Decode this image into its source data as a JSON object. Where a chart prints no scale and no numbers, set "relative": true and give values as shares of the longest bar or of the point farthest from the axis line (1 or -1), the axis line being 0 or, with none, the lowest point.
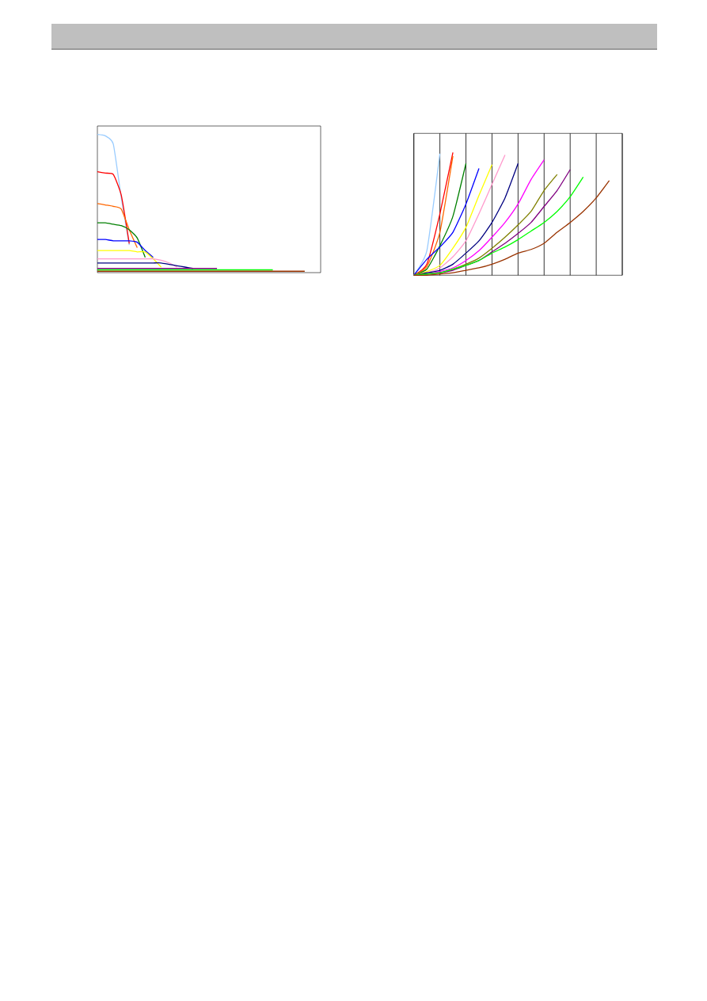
{
  "chart_data": [
    {
      "type": "line",
      "relative": true,
      "tick_labels": false,
      "categories": [
        null,
        null,
        null,
        null,
        null,
        null,
        null,
        null,
        null,
        null,
        null,
        null,
        null,
        null,
        null,
        null,
        null,
        null,
        null,
        null,
        null,
        null,
        null,
        null,
        null,
        null,
        null,
        null,
        null
      ],
      "series": [
        {
          "color": "#99ccff",
          "values": [
            1.0,
            0.99,
            0.93,
            0.54,
            0.2,
            null,
            null,
            null,
            null,
            null,
            null,
            null,
            null,
            null,
            null,
            null,
            null,
            null,
            null,
            null,
            null,
            null,
            null,
            null,
            null,
            null,
            null,
            null,
            null
          ]
        },
        {
          "color": "#ff0000",
          "values": [
            0.73,
            0.72,
            0.71,
            0.56,
            0.21,
            null,
            null,
            null,
            null,
            null,
            null,
            null,
            null,
            null,
            null,
            null,
            null,
            null,
            null,
            null,
            null,
            null,
            null,
            null,
            null,
            null,
            null,
            null,
            null
          ]
        },
        {
          "color": "#ff6600",
          "values": [
            0.5,
            0.49,
            0.48,
            0.46,
            0.31,
            0.18,
            null,
            null,
            null,
            null,
            null,
            null,
            null,
            null,
            null,
            null,
            null,
            null,
            null,
            null,
            null,
            null,
            null,
            null,
            null,
            null,
            null,
            null,
            null
          ]
        },
        {
          "color": "#008000",
          "values": [
            0.36,
            0.36,
            0.35,
            0.34,
            0.31,
            0.25,
            0.11,
            null,
            null,
            null,
            null,
            null,
            null,
            null,
            null,
            null,
            null,
            null,
            null,
            null,
            null,
            null,
            null,
            null,
            null,
            null,
            null,
            null,
            null
          ]
        },
        {
          "color": "#0000ff",
          "values": [
            0.24,
            0.24,
            0.23,
            0.23,
            0.23,
            0.22,
            0.16,
            0.11,
            null,
            null,
            null,
            null,
            null,
            null,
            null,
            null,
            null,
            null,
            null,
            null,
            null,
            null,
            null,
            null,
            null,
            null,
            null,
            null,
            null
          ]
        },
        {
          "color": "#ffff00",
          "values": [
            0.16,
            0.16,
            0.16,
            0.16,
            0.16,
            0.15,
            0.15,
            0.1,
            0.04,
            null,
            null,
            null,
            null,
            null,
            null,
            null,
            null,
            null,
            null,
            null,
            null,
            null,
            null,
            null,
            null,
            null,
            null,
            null,
            null
          ]
        },
        {
          "color": "#ff99cc",
          "values": [
            0.1,
            0.1,
            0.1,
            0.1,
            0.1,
            0.1,
            0.1,
            0.1,
            0.09,
            0.07,
            0.04,
            null,
            null,
            null,
            null,
            null,
            null,
            null,
            null,
            null,
            null,
            null,
            null,
            null,
            null,
            null,
            null,
            null,
            null
          ]
        },
        {
          "color": "#000080",
          "values": [
            0.07,
            0.07,
            0.07,
            0.07,
            0.07,
            0.07,
            0.07,
            0.07,
            0.07,
            0.06,
            0.05,
            0.04,
            0.03,
            null,
            null,
            null,
            null,
            null,
            null,
            null,
            null,
            null,
            null,
            null,
            null,
            null,
            null,
            null,
            null
          ]
        },
        {
          "color": "#800080",
          "values": [
            0.03,
            0.03,
            0.03,
            0.03,
            0.03,
            0.03,
            0.03,
            0.03,
            0.03,
            0.03,
            0.03,
            0.03,
            0.03,
            0.03,
            0.03,
            0.03,
            null,
            null,
            null,
            null,
            null,
            null,
            null,
            null,
            null,
            null,
            null,
            null,
            null
          ]
        },
        {
          "color": "#00ff00",
          "values": [
            0.02,
            0.02,
            0.02,
            0.02,
            0.02,
            0.02,
            0.02,
            0.02,
            0.02,
            0.02,
            0.02,
            0.02,
            0.02,
            0.02,
            0.02,
            0.02,
            0.02,
            0.02,
            0.02,
            0.02,
            0.02,
            0.02,
            0.02,
            null,
            null,
            null,
            null,
            null,
            null
          ]
        },
        {
          "color": "#993300",
          "values": [
            0.01,
            0.01,
            0.01,
            0.01,
            0.01,
            0.01,
            0.01,
            0.01,
            0.01,
            0.01,
            0.01,
            0.01,
            0.01,
            0.01,
            0.01,
            0.01,
            0.01,
            0.01,
            0.01,
            0.01,
            0.01,
            0.01,
            0.01,
            0.01,
            0.01,
            0.01,
            0.01,
            null,
            null
          ]
        }
      ]
    },
    {
      "type": "line",
      "relative": true,
      "tick_labels": false,
      "grid": "x",
      "categories": [
        null,
        null,
        null,
        null,
        null,
        null,
        null,
        null,
        null,
        null,
        null,
        null,
        null,
        null,
        null,
        null,
        null
      ],
      "series": [
        {
          "color": "#99ccff",
          "values": [
            0,
            0.2,
            0.99,
            null,
            null,
            null,
            null,
            null,
            null,
            null,
            null,
            null,
            null,
            null,
            null,
            null,
            null
          ]
        },
        {
          "color": "#ff0000",
          "values": [
            0,
            0.09,
            0.5,
            1.0,
            null,
            null,
            null,
            null,
            null,
            null,
            null,
            null,
            null,
            null,
            null,
            null,
            null
          ]
        },
        {
          "color": "#ff6600",
          "values": [
            0,
            0.07,
            0.35,
            0.97,
            null,
            null,
            null,
            null,
            null,
            null,
            null,
            null,
            null,
            null,
            null,
            null,
            null
          ]
        },
        {
          "color": "#008000",
          "values": [
            0,
            0.05,
            0.24,
            0.48,
            0.91,
            null,
            null,
            null,
            null,
            null,
            null,
            null,
            null,
            null,
            null,
            null,
            null
          ]
        },
        {
          "color": "#0000ff",
          "values": [
            0,
            0.13,
            0.23,
            0.35,
            0.58,
            0.87,
            null,
            null,
            null,
            null,
            null,
            null,
            null,
            null,
            null,
            null,
            null
          ]
        },
        {
          "color": "#ffff00",
          "values": [
            0,
            0.03,
            0.08,
            0.22,
            0.39,
            0.65,
            0.9,
            null,
            null,
            null,
            null,
            null,
            null,
            null,
            null,
            null,
            null
          ]
        },
        {
          "color": "#ff99cc",
          "values": [
            0,
            0.02,
            0.06,
            0.15,
            0.28,
            0.5,
            0.74,
            0.98,
            null,
            null,
            null,
            null,
            null,
            null,
            null,
            null,
            null
          ]
        },
        {
          "color": "#000080",
          "values": [
            0,
            0.02,
            0.04,
            0.09,
            0.18,
            0.28,
            0.43,
            0.63,
            0.91,
            null,
            null,
            null,
            null,
            null,
            null,
            null,
            null
          ]
        },
        {
          "color": "#ff00ff",
          "values": [
            0,
            0.01,
            0.03,
            0.06,
            0.12,
            0.2,
            0.31,
            0.43,
            0.58,
            0.78,
            0.94,
            null,
            null,
            null,
            null,
            null,
            null
          ]
        },
        {
          "color": "#808000",
          "values": [
            0,
            0.01,
            0.02,
            0.05,
            0.09,
            0.14,
            0.22,
            0.31,
            0.41,
            0.52,
            0.69,
            0.82,
            null,
            null,
            null,
            null,
            null
          ]
        },
        {
          "color": "#800080",
          "values": [
            0,
            0.01,
            0.02,
            0.04,
            0.08,
            0.12,
            0.19,
            0.26,
            0.34,
            0.43,
            0.56,
            0.69,
            0.86,
            null,
            null,
            null,
            null
          ]
        },
        {
          "color": "#00ff00",
          "values": [
            0,
            0.01,
            0.02,
            0.05,
            0.08,
            0.12,
            0.18,
            0.23,
            0.29,
            0.36,
            0.43,
            0.52,
            0.64,
            0.8,
            null,
            null,
            null
          ]
        },
        {
          "color": "#993300",
          "values": [
            0,
            0.0,
            0.01,
            0.02,
            0.04,
            0.06,
            0.09,
            0.13,
            0.18,
            0.21,
            0.26,
            0.35,
            0.43,
            0.52,
            0.63,
            0.77,
            null
          ]
        }
      ]
    }
  ]
}
